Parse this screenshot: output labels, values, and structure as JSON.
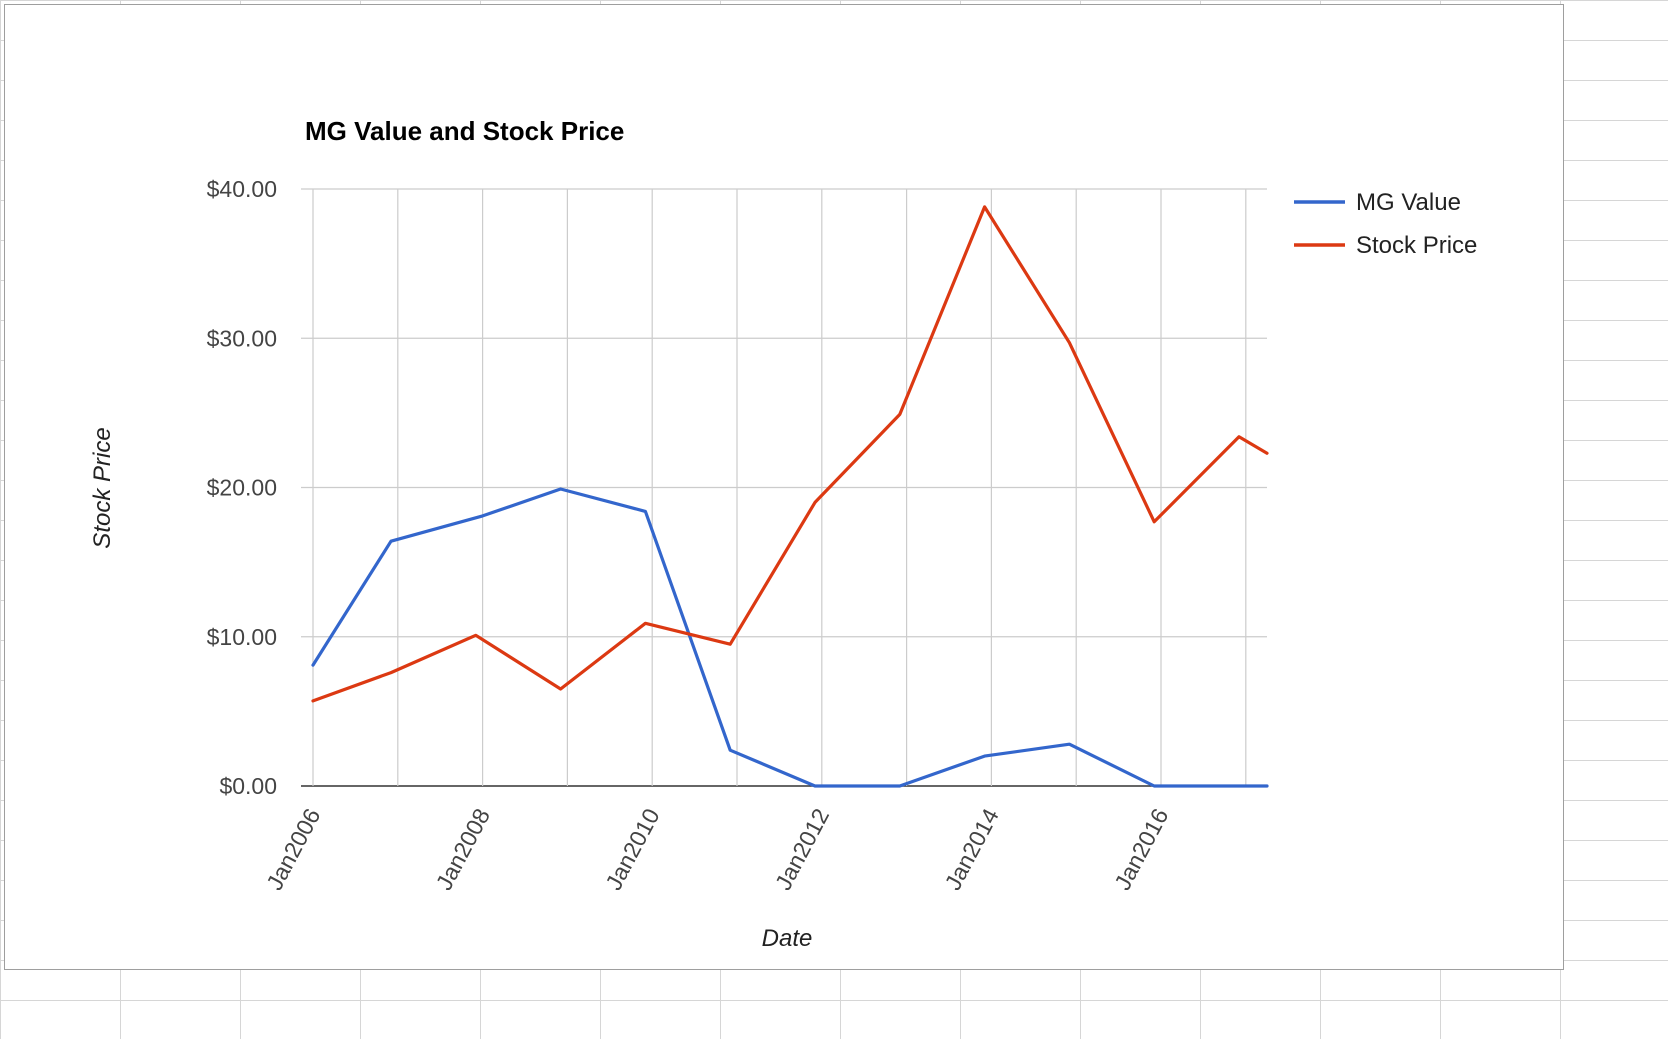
{
  "chart_data": {
    "type": "line",
    "title": "MG Value and Stock Price",
    "xlabel": "Date",
    "ylabel": "Stock Price",
    "ylim": [
      0,
      40
    ],
    "y_ticks": [
      "$0.00",
      "$10.00",
      "$20.00",
      "$30.00",
      "$40.00"
    ],
    "y_tick_values": [
      0,
      10,
      20,
      30,
      40
    ],
    "x_ticks": [
      "Jan2006",
      "Jan2008",
      "Jan2010",
      "Jan2012",
      "Jan2014",
      "Jan2016"
    ],
    "x_tick_values": [
      2006,
      2008,
      2010,
      2012,
      2014,
      2016
    ],
    "xlim": [
      2006,
      2017.25
    ],
    "grid": true,
    "legend_position": "right",
    "series": [
      {
        "name": "MG Value",
        "color": "#3366cc",
        "x": [
          2006,
          2006.92,
          2008,
          2008.92,
          2009.92,
          2010.92,
          2011.92,
          2012.92,
          2013.92,
          2014.92,
          2015.92,
          2017.25
        ],
        "values": [
          8.1,
          16.4,
          18.1,
          19.9,
          18.4,
          2.4,
          0.0,
          0.0,
          2.0,
          2.8,
          0.0,
          0.0
        ]
      },
      {
        "name": "Stock Price",
        "color": "#dc3912",
        "x": [
          2006,
          2006.92,
          2007.92,
          2008.92,
          2009.92,
          2010.92,
          2011.92,
          2012.92,
          2013.92,
          2014.92,
          2015.92,
          2016.92,
          2017.25
        ],
        "values": [
          5.7,
          7.6,
          10.1,
          6.5,
          10.9,
          9.5,
          19.0,
          24.9,
          38.8,
          29.7,
          17.7,
          23.4,
          22.3
        ]
      }
    ]
  }
}
